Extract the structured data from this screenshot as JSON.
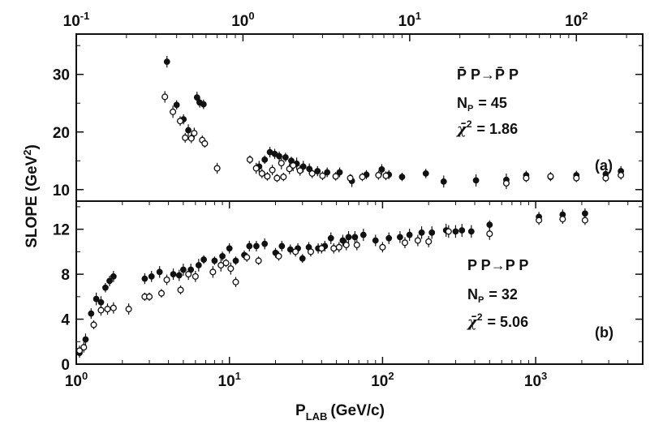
{
  "chart_data": [
    {
      "type": "scatter",
      "panel_label": "(a)",
      "x_scale": "log",
      "top_axis_ticks": [
        "10-1",
        "100",
        "101",
        "102"
      ],
      "top_axis_tick_values": [
        0.1,
        1,
        10,
        100
      ],
      "xlim": [
        0.1,
        250
      ],
      "ylim": [
        8,
        37
      ],
      "y_ticks": [
        10,
        20,
        30
      ],
      "annotation": {
        "reaction": "P̄ P→P̄ P",
        "np_label": "N",
        "np_sub": "P",
        "np_value": "= 45",
        "chi_symbol": "χ̄",
        "chi_sup": "2",
        "chi_value": "= 1.86"
      },
      "series": [
        {
          "marker": "filled",
          "points": [
            [
              0.35,
              32.2
            ],
            [
              0.4,
              24.7
            ],
            [
              0.44,
              22.2
            ],
            [
              0.47,
              20.3
            ],
            [
              0.53,
              26.0
            ],
            [
              0.55,
              25.1
            ],
            [
              0.58,
              24.8
            ],
            [
              1.25,
              14.0
            ],
            [
              1.35,
              15.2
            ],
            [
              1.45,
              16.5
            ],
            [
              1.55,
              16.2
            ],
            [
              1.65,
              15.8
            ],
            [
              1.8,
              15.6
            ],
            [
              1.95,
              15.0
            ],
            [
              2.1,
              14.5
            ],
            [
              2.3,
              14.0
            ],
            [
              2.5,
              13.6
            ],
            [
              2.8,
              13.2
            ],
            [
              3.2,
              13.0
            ],
            [
              3.8,
              13.0
            ],
            [
              4.5,
              11.5
            ],
            [
              5.5,
              12.6
            ],
            [
              6.8,
              13.5
            ],
            [
              7.5,
              12.6
            ],
            [
              9.0,
              12.2
            ],
            [
              12.5,
              12.8
            ],
            [
              16.0,
              11.4
            ],
            [
              25.0,
              11.6
            ],
            [
              38.0,
              11.7
            ],
            [
              50.0,
              12.5
            ],
            [
              70.0,
              12.2
            ],
            [
              100.0,
              12.5
            ],
            [
              150.0,
              12.7
            ],
            [
              185.0,
              13.2
            ]
          ]
        },
        {
          "marker": "open",
          "points": [
            [
              0.34,
              26.1
            ],
            [
              0.38,
              23.5
            ],
            [
              0.42,
              21.9
            ],
            [
              0.45,
              19.0
            ],
            [
              0.49,
              18.9
            ],
            [
              0.51,
              19.8
            ],
            [
              0.57,
              18.6
            ],
            [
              0.59,
              18.0
            ],
            [
              0.7,
              13.7
            ],
            [
              1.1,
              15.2
            ],
            [
              1.2,
              13.7
            ],
            [
              1.3,
              12.8
            ],
            [
              1.4,
              12.3
            ],
            [
              1.5,
              13.4
            ],
            [
              1.6,
              12.0
            ],
            [
              1.7,
              14.6
            ],
            [
              1.75,
              12.2
            ],
            [
              1.9,
              13.6
            ],
            [
              2.0,
              14.2
            ],
            [
              2.2,
              13.3
            ],
            [
              2.6,
              12.8
            ],
            [
              3.0,
              12.4
            ],
            [
              3.6,
              12.3
            ],
            [
              4.4,
              12.0
            ],
            [
              5.2,
              12.2
            ],
            [
              6.5,
              12.5
            ],
            [
              7.2,
              12.4
            ],
            [
              38.0,
              11.1
            ],
            [
              50.0,
              12.0
            ],
            [
              70.0,
              12.3
            ],
            [
              100.0,
              12.0
            ],
            [
              150.0,
              12.0
            ],
            [
              185.0,
              12.5
            ]
          ]
        }
      ]
    },
    {
      "type": "scatter",
      "panel_label": "(b)",
      "x_scale": "log",
      "bottom_axis_ticks": [
        "100",
        "101",
        "102",
        "103"
      ],
      "bottom_axis_tick_values": [
        1,
        10,
        100,
        1000
      ],
      "xlim": [
        1,
        5000
      ],
      "ylim": [
        0,
        14.5
      ],
      "y_ticks": [
        0,
        4,
        8,
        12
      ],
      "xlabel": "P",
      "xlabel_sub": "LAB",
      "xlabel_unit": "(GeV/c)",
      "annotation": {
        "reaction": "P P→P P",
        "np_label": "N",
        "np_sub": "P",
        "np_value": "= 32",
        "chi_symbol": "χ̄",
        "chi_sup": "2",
        "chi_value": "= 5.06"
      },
      "series": [
        {
          "marker": "filled",
          "points": [
            [
              1.05,
              1.0
            ],
            [
              1.15,
              2.2
            ],
            [
              1.25,
              4.5
            ],
            [
              1.35,
              5.8
            ],
            [
              1.45,
              5.5
            ],
            [
              1.55,
              6.8
            ],
            [
              1.65,
              7.4
            ],
            [
              1.75,
              7.8
            ],
            [
              2.8,
              7.6
            ],
            [
              3.1,
              7.8
            ],
            [
              3.5,
              8.2
            ],
            [
              4.3,
              8.0
            ],
            [
              4.7,
              7.9
            ],
            [
              5.0,
              8.4
            ],
            [
              5.6,
              8.4
            ],
            [
              6.3,
              8.8
            ],
            [
              6.8,
              9.3
            ],
            [
              8.0,
              9.2
            ],
            [
              9.0,
              9.6
            ],
            [
              10.0,
              10.3
            ],
            [
              11.0,
              9.2
            ],
            [
              12.5,
              9.7
            ],
            [
              13.5,
              10.5
            ],
            [
              15.0,
              10.5
            ],
            [
              17.0,
              10.7
            ],
            [
              20.0,
              9.9
            ],
            [
              22.0,
              10.5
            ],
            [
              25.0,
              10.2
            ],
            [
              28.0,
              10.3
            ],
            [
              30.0,
              9.4
            ],
            [
              33.0,
              10.4
            ],
            [
              38.0,
              10.3
            ],
            [
              42.0,
              10.5
            ],
            [
              46.0,
              11.2
            ],
            [
              55.0,
              11.0
            ],
            [
              60.0,
              11.3
            ],
            [
              66.0,
              11.3
            ],
            [
              75.0,
              11.5
            ],
            [
              90.0,
              11.0
            ],
            [
              110.0,
              11.2
            ],
            [
              130.0,
              11.3
            ],
            [
              150.0,
              11.5
            ],
            [
              180.0,
              11.7
            ],
            [
              210.0,
              11.7
            ],
            [
              260.0,
              11.9
            ],
            [
              300.0,
              11.8
            ],
            [
              330.0,
              11.9
            ],
            [
              380.0,
              11.8
            ],
            [
              500.0,
              12.4
            ],
            [
              1050.0,
              13.1
            ],
            [
              1500.0,
              13.3
            ],
            [
              2100.0,
              13.4
            ]
          ]
        },
        {
          "marker": "open",
          "points": [
            [
              1.05,
              1.2
            ],
            [
              1.12,
              1.5
            ],
            [
              1.3,
              3.5
            ],
            [
              1.45,
              4.8
            ],
            [
              1.6,
              4.9
            ],
            [
              1.75,
              5.0
            ],
            [
              2.2,
              4.9
            ],
            [
              2.8,
              6.0
            ],
            [
              3.0,
              6.0
            ],
            [
              3.6,
              6.3
            ],
            [
              3.9,
              7.5
            ],
            [
              4.8,
              6.6
            ],
            [
              5.4,
              8.0
            ],
            [
              6.0,
              7.8
            ],
            [
              7.8,
              8.2
            ],
            [
              8.8,
              8.8
            ],
            [
              9.5,
              9.0
            ],
            [
              10.2,
              8.5
            ],
            [
              11.0,
              7.3
            ],
            [
              13.0,
              9.5
            ],
            [
              15.5,
              9.2
            ],
            [
              21.0,
              9.6
            ],
            [
              27.0,
              10.0
            ],
            [
              34.0,
              10.0
            ],
            [
              40.0,
              10.3
            ],
            [
              48.0,
              10.3
            ],
            [
              52.0,
              10.4
            ],
            [
              58.0,
              10.6
            ],
            [
              68.0,
              10.6
            ],
            [
              100.0,
              10.4
            ],
            [
              140.0,
              10.8
            ],
            [
              170.0,
              11.0
            ],
            [
              200.0,
              10.9
            ],
            [
              270.0,
              11.8
            ],
            [
              500.0,
              11.6
            ],
            [
              1050.0,
              12.8
            ],
            [
              1500.0,
              12.9
            ],
            [
              2100.0,
              12.8
            ]
          ]
        }
      ]
    }
  ],
  "shared": {
    "ylabel": "SLOPE (GeV",
    "ylabel_sup": "2",
    "ylabel_end": ")"
  }
}
